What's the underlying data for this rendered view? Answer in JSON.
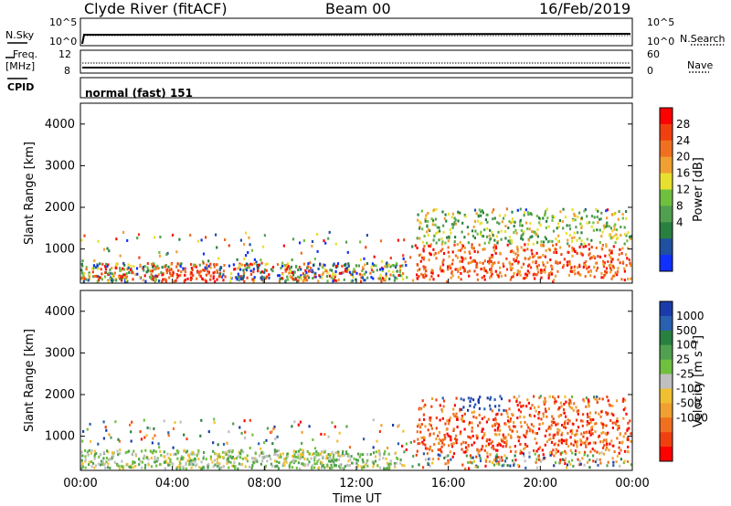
{
  "header": {
    "station": "Clyde River (fitACF)",
    "beam": "Beam 00",
    "date": "16/Feb/2019"
  },
  "top_panels": {
    "nsky_label": "N.Sky",
    "nsearch_label": "N.Search",
    "freq_label_1": "Freq.",
    "freq_label_2": "[MHz]",
    "nave_label": "Nave",
    "cpid_label": "CPID",
    "cpid_value": "normal (fast) 151",
    "noise_left_ticks": [
      "10^5",
      "10^0"
    ],
    "noise_right_ticks": [
      "10^5",
      "10^0"
    ],
    "freq_left_ticks": [
      "12",
      "8"
    ],
    "nave_right_ticks": [
      "60",
      "0"
    ]
  },
  "chart_data": [
    {
      "type": "heatmap",
      "title": "",
      "xlabel": "Time UT",
      "ylabel": "Slant Range [km]",
      "xlim": [
        "00:00",
        "24:00"
      ],
      "ylim": [
        180,
        4500
      ],
      "x_ticks": [
        "00:00",
        "04:00",
        "08:00",
        "12:00",
        "16:00",
        "20:00",
        "00:00"
      ],
      "y_ticks": [
        "1000",
        "2000",
        "3000",
        "4000"
      ],
      "colorbar": {
        "label": "Power [dB]",
        "ticks": [
          "4",
          "8",
          "12",
          "16",
          "20",
          "24",
          "28"
        ],
        "colors": [
          "#1030ff",
          "#2050a0",
          "#2a8040",
          "#50a050",
          "#70c040",
          "#e8e030",
          "#f0a030",
          "#f07020",
          "#f04010",
          "#ff0000"
        ]
      }
    },
    {
      "type": "heatmap",
      "title": "",
      "xlabel": "Time UT",
      "ylabel": "Slant Range [km]",
      "xlim": [
        "00:00",
        "24:00"
      ],
      "ylim": [
        180,
        4500
      ],
      "x_ticks": [
        "00:00",
        "04:00",
        "08:00",
        "12:00",
        "16:00",
        "20:00",
        "00:00"
      ],
      "y_ticks": [
        "1000",
        "2000",
        "3000",
        "4000"
      ],
      "colorbar": {
        "label": "Velocity [m s⁻¹]",
        "ticks": [
          "1000",
          "500",
          "100",
          "25",
          "-25",
          "-100",
          "-500",
          "-1000"
        ],
        "colors": [
          "#1a3caa",
          "#2a60b0",
          "#2a8040",
          "#50a050",
          "#70c040",
          "#c0c0c0",
          "#f0c030",
          "#f0a030",
          "#f07020",
          "#f04010",
          "#ff0000"
        ]
      }
    }
  ],
  "x_axis_label": "Time UT"
}
